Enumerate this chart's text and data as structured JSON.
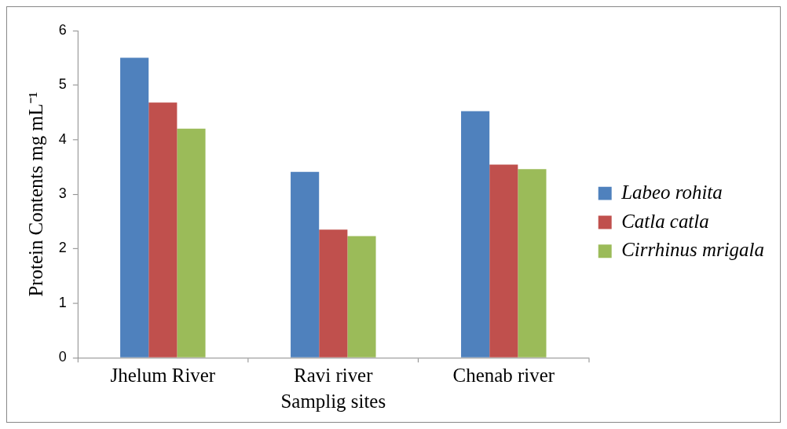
{
  "chart_data": {
    "type": "bar",
    "xlabel": "Samplig sites",
    "ylabel": "Protein Contents mg mL⁻¹",
    "categories": [
      "Jhelum River",
      "Ravi river",
      "Chenab river"
    ],
    "series": [
      {
        "name": "Labeo rohita",
        "color": "#4f81bd",
        "values": [
          5.5,
          3.41,
          4.52
        ]
      },
      {
        "name": "Catla catla",
        "color": "#c0504d",
        "values": [
          4.68,
          2.35,
          3.54
        ]
      },
      {
        "name": "Cirrhinus mrigala",
        "color": "#9bbb59",
        "values": [
          4.2,
          2.23,
          3.46
        ]
      }
    ],
    "ylim": [
      0,
      6
    ],
    "yticks": [
      0,
      1,
      2,
      3,
      4,
      5,
      6
    ],
    "grid": false,
    "legend": "right"
  }
}
